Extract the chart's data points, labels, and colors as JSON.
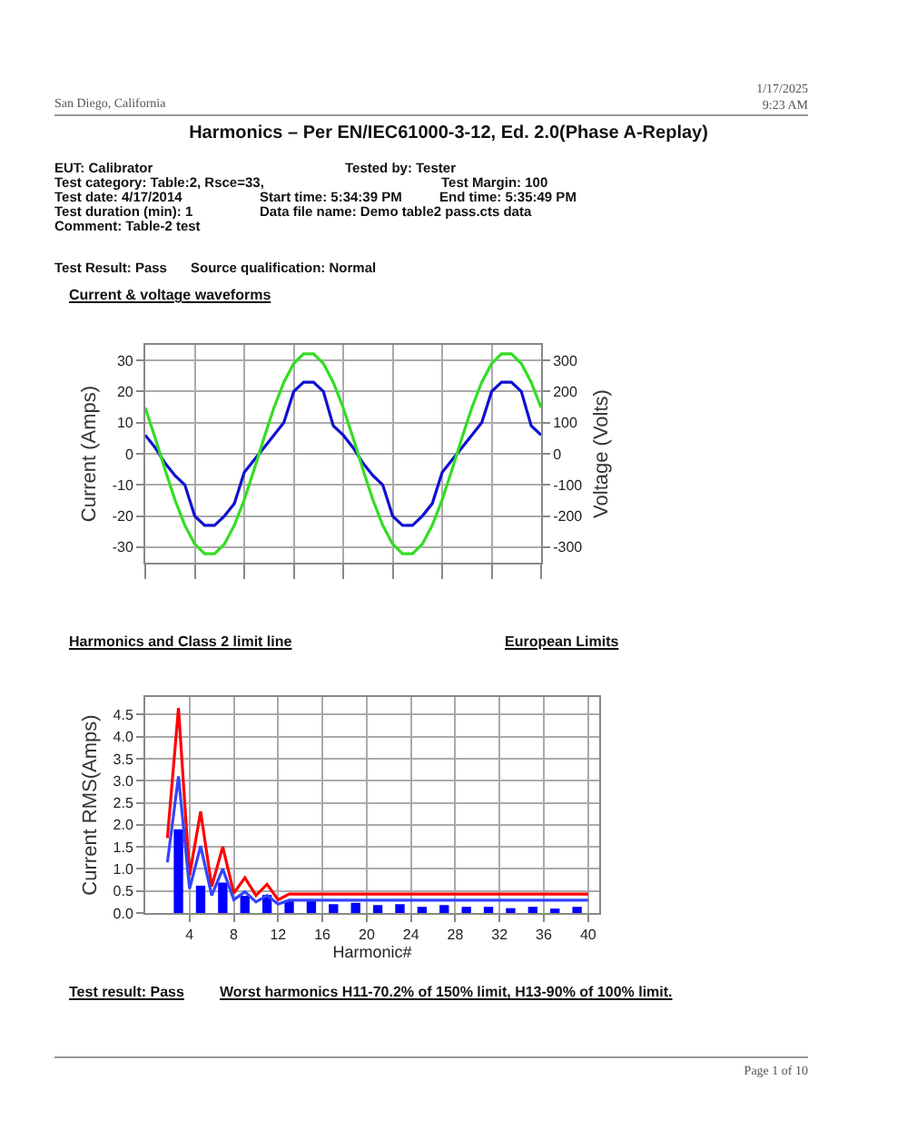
{
  "chart_data": [
    {
      "type": "line",
      "title": "Current & voltage waveforms",
      "annotations": [
        "San Diego, California",
        "1/17/2025",
        "9:23 AM",
        "Harmonics – Per EN/IEC61000-3-12, Ed. 2.0(Phase A-Replay)",
        "EUT: Calibrator",
        "Tested by: Tester",
        "Test category: Table:2,  Rsce=33,",
        "Test Margin: 100",
        "Test date: 4/17/2014",
        "Start time: 5:34:39 PM",
        "End time: 5:35:49 PM",
        "Test duration (min): 1",
        "Data file name: Demo  table2  pass.cts  data",
        "Comment: Table-2 test",
        "Test Result: Pass",
        "Source qualification: Normal"
      ],
      "categories": [
        null,
        null,
        null,
        null,
        null,
        null,
        null,
        null,
        null,
        null,
        null,
        null,
        null,
        null,
        null,
        null,
        null,
        null,
        null,
        null,
        null,
        null,
        null,
        null,
        null,
        null,
        null,
        null,
        null,
        null,
        null,
        null,
        null,
        null,
        null,
        null,
        null,
        null,
        null,
        null,
        null
      ],
      "series": [
        {
          "color": "#1010d0",
          "values": [
            6,
            2,
            -3,
            -7,
            -10,
            -20,
            -23,
            -23,
            -20,
            -16,
            -6,
            -2,
            2,
            6,
            10,
            20,
            23,
            23,
            20,
            9,
            6,
            2,
            -3,
            -7,
            -10,
            -20,
            -23,
            -23,
            -20,
            -16,
            -6,
            -2,
            2,
            6,
            10,
            20,
            23,
            23,
            20,
            9,
            6
          ]
        },
        {
          "color": "#33dd22",
          "axis": "y2",
          "values": [
            148,
            51,
            -51,
            -148,
            -230,
            -290,
            -321,
            -321,
            -290,
            -230,
            -148,
            -51,
            51,
            148,
            230,
            290,
            321,
            321,
            290,
            230,
            148,
            51,
            -51,
            -148,
            -230,
            -290,
            -321,
            -321,
            -290,
            -230,
            -148,
            -51,
            51,
            148,
            230,
            290,
            321,
            321,
            290,
            230,
            148
          ]
        }
      ],
      "ylabel": "Current (Amps)",
      "y2label": "Voltage (Volts)",
      "ylim": [
        -35,
        35
      ],
      "yticks": [
        -30,
        -20,
        -10,
        0,
        10,
        20,
        30
      ],
      "y2lim": [
        -350,
        350
      ],
      "y2ticks": [
        -300,
        -200,
        -100,
        0,
        100,
        200,
        300
      ],
      "grid": true
    },
    {
      "type": "bar",
      "title": "Harmonics and Class 2 limit line",
      "annotations": [
        "European Limits",
        "Test result:  Pass",
        "Worst harmonics  H11-70.2% of 150% limit, H13-90% of 100% limit.",
        "Page 1 of 10"
      ],
      "xlabel": "Harmonic#",
      "ylabel": "Current RMS(Amps)",
      "series": [
        {
          "type": "bar",
          "color": "#0000ff",
          "x": [
            3,
            5,
            7,
            9,
            11,
            13,
            15,
            17,
            19,
            21,
            23,
            25,
            27,
            29,
            31,
            33,
            35,
            37,
            39
          ],
          "values": [
            1.9,
            0.62,
            0.69,
            0.39,
            0.41,
            0.29,
            0.29,
            0.2,
            0.23,
            0.18,
            0.2,
            0.14,
            0.18,
            0.14,
            0.14,
            0.11,
            0.14,
            0.1,
            0.14
          ]
        },
        {
          "type": "line",
          "color": "#ff0000",
          "x": [
            2,
            3,
            4,
            5,
            6,
            7,
            8,
            9,
            10,
            11,
            12,
            13,
            40
          ],
          "values": [
            1.7,
            4.65,
            0.85,
            2.3,
            0.6,
            1.5,
            0.45,
            0.8,
            0.4,
            0.65,
            0.3,
            0.43,
            0.43
          ]
        },
        {
          "type": "line",
          "color": "#3344ff",
          "x": [
            2,
            3,
            4,
            5,
            6,
            7,
            8,
            9,
            10,
            11,
            12,
            13,
            40
          ],
          "values": [
            1.15,
            3.1,
            0.55,
            1.52,
            0.4,
            1.0,
            0.3,
            0.48,
            0.25,
            0.4,
            0.2,
            0.29,
            0.29
          ]
        }
      ],
      "xlim": [
        0,
        41
      ],
      "xticks": [
        4,
        8,
        12,
        16,
        20,
        24,
        28,
        32,
        36,
        40
      ],
      "ylim": [
        0,
        4.9
      ],
      "yticks": [
        {
          "value": 0,
          "label": "0.0"
        },
        {
          "value": 0.5,
          "label": "0.5"
        },
        {
          "value": 1,
          "label": "1.0"
        },
        {
          "value": 1.5,
          "label": "1.5"
        },
        {
          "value": 2,
          "label": "2.0"
        },
        {
          "value": 2.5,
          "label": "2.5"
        },
        {
          "value": 3,
          "label": "3.0"
        },
        {
          "value": 3.5,
          "label": "3.5"
        },
        {
          "value": 4,
          "label": "4.0"
        },
        {
          "value": 4.5,
          "label": "4.5"
        }
      ],
      "grid": true
    }
  ]
}
